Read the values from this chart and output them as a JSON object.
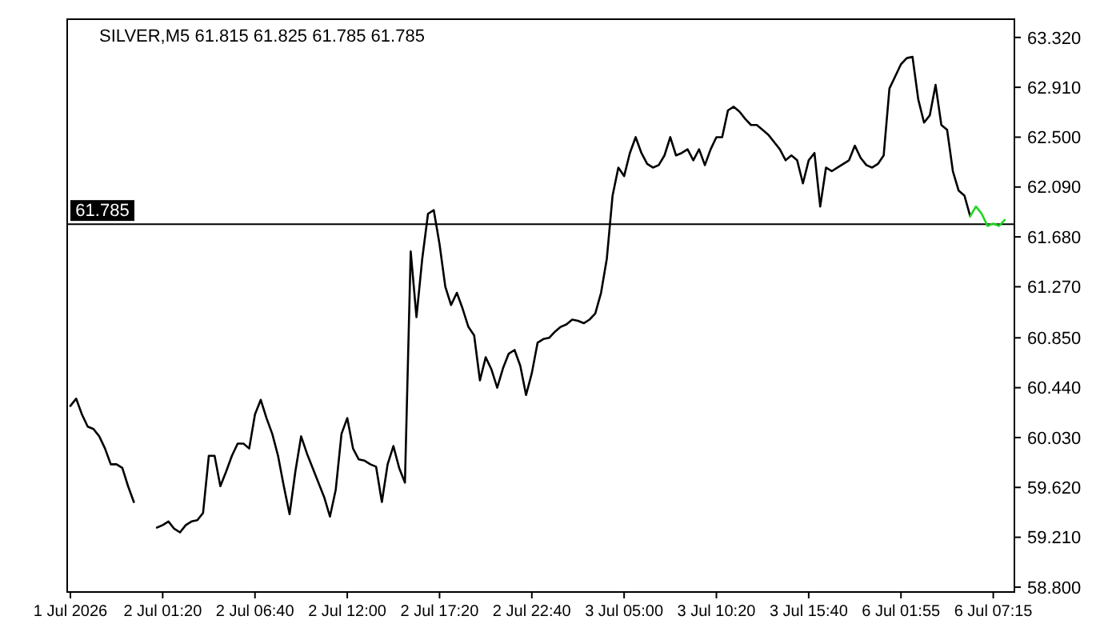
{
  "chart_data": {
    "type": "line",
    "title": "SILVER,M5  61.815 61.825 61.785 61.785",
    "categories": [
      "1 Jul 2026",
      null,
      null,
      null,
      null,
      null,
      null,
      null,
      null,
      null,
      null,
      null,
      null,
      null,
      null,
      null,
      "2 Jul 01:20",
      null,
      null,
      null,
      null,
      null,
      null,
      null,
      null,
      null,
      null,
      null,
      null,
      null,
      null,
      null,
      "2 Jul 06:40",
      null,
      null,
      null,
      null,
      null,
      null,
      null,
      null,
      null,
      null,
      null,
      null,
      null,
      null,
      null,
      "2 Jul 12:00",
      null,
      null,
      null,
      null,
      null,
      null,
      null,
      null,
      null,
      null,
      null,
      null,
      null,
      null,
      null,
      "2 Jul 17:20",
      null,
      null,
      null,
      null,
      null,
      null,
      null,
      null,
      null,
      null,
      null,
      null,
      null,
      null,
      null,
      "2 Jul 22:40",
      null,
      null,
      null,
      null,
      null,
      null,
      null,
      null,
      null,
      null,
      null,
      null,
      null,
      null,
      null,
      "3 Jul 05:00",
      null,
      null,
      null,
      null,
      null,
      null,
      null,
      null,
      null,
      null,
      null,
      null,
      null,
      null,
      null,
      "3 Jul 10:20",
      null,
      null,
      null,
      null,
      null,
      null,
      null,
      null,
      null,
      null,
      null,
      null,
      null,
      null,
      null,
      "3 Jul 15:40",
      null,
      null,
      null,
      null,
      null,
      null,
      null,
      null,
      null,
      null,
      null,
      null,
      null,
      null,
      null,
      "6 Jul 01:55",
      null,
      null,
      null,
      null,
      null,
      null,
      null,
      null,
      null,
      null,
      null,
      null,
      null,
      null,
      null,
      "6 Jul 07:15",
      null,
      null
    ],
    "series": [
      {
        "color": "#000000",
        "values": [
          60.29,
          60.35,
          60.22,
          60.12,
          60.1,
          60.04,
          59.94,
          59.81,
          59.81,
          59.78,
          59.63,
          59.5,
          null,
          null,
          null,
          59.29,
          59.31,
          59.34,
          59.28,
          59.25,
          59.31,
          59.34,
          59.35,
          59.41,
          59.88,
          59.88,
          59.63,
          59.75,
          59.88,
          59.98,
          59.98,
          59.94,
          60.22,
          60.34,
          60.19,
          60.06,
          59.88,
          59.63,
          59.4,
          59.75,
          60.04,
          59.9,
          59.78,
          59.66,
          59.54,
          59.38,
          59.6,
          60.06,
          60.19,
          59.94,
          59.85,
          59.84,
          59.81,
          59.79,
          59.5,
          59.81,
          59.96,
          59.78,
          59.66,
          61.56,
          61.02,
          61.5,
          61.87,
          61.9,
          61.62,
          61.27,
          61.12,
          61.22,
          61.09,
          60.94,
          60.87,
          60.5,
          60.69,
          60.59,
          60.44,
          60.6,
          60.72,
          60.75,
          60.62,
          60.38,
          60.56,
          60.81,
          60.84,
          60.85,
          60.9,
          60.94,
          60.96,
          61.0,
          60.99,
          60.97,
          61.0,
          61.05,
          61.22,
          61.5,
          62.02,
          62.25,
          62.18,
          62.37,
          62.5,
          62.37,
          62.28,
          62.25,
          62.27,
          62.35,
          62.5,
          62.35,
          62.37,
          62.4,
          62.31,
          62.4,
          62.27,
          62.4,
          62.5,
          62.5,
          62.72,
          62.75,
          62.71,
          62.65,
          62.6,
          62.6,
          62.56,
          62.52,
          62.46,
          62.4,
          62.31,
          62.35,
          62.31,
          62.12,
          62.31,
          62.37,
          61.93,
          62.25,
          62.22,
          62.25,
          62.28,
          62.31,
          62.43,
          62.33,
          62.27,
          62.25,
          62.28,
          62.35,
          62.9,
          63.0,
          63.1,
          63.15,
          63.16,
          62.81,
          62.62,
          62.68,
          62.93,
          62.6,
          62.56,
          62.22,
          62.06,
          62.02,
          61.85,
          null,
          null,
          null,
          null,
          null,
          null
        ]
      },
      {
        "color": "#1ed81e",
        "values": [
          null,
          null,
          null,
          null,
          null,
          null,
          null,
          null,
          null,
          null,
          null,
          null,
          null,
          null,
          null,
          null,
          null,
          null,
          null,
          null,
          null,
          null,
          null,
          null,
          null,
          null,
          null,
          null,
          null,
          null,
          null,
          null,
          null,
          null,
          null,
          null,
          null,
          null,
          null,
          null,
          null,
          null,
          null,
          null,
          null,
          null,
          null,
          null,
          null,
          null,
          null,
          null,
          null,
          null,
          null,
          null,
          null,
          null,
          null,
          null,
          null,
          null,
          null,
          null,
          null,
          null,
          null,
          null,
          null,
          null,
          null,
          null,
          null,
          null,
          null,
          null,
          null,
          null,
          null,
          null,
          null,
          null,
          null,
          null,
          null,
          null,
          null,
          null,
          null,
          null,
          null,
          null,
          null,
          null,
          null,
          null,
          null,
          null,
          null,
          null,
          null,
          null,
          null,
          null,
          null,
          null,
          null,
          null,
          null,
          null,
          null,
          null,
          null,
          null,
          null,
          null,
          null,
          null,
          null,
          null,
          null,
          null,
          null,
          null,
          null,
          null,
          null,
          null,
          null,
          null,
          null,
          null,
          null,
          null,
          null,
          null,
          null,
          null,
          null,
          null,
          null,
          null,
          null,
          null,
          null,
          null,
          null,
          null,
          null,
          null,
          null,
          null,
          null,
          null,
          null,
          null,
          61.85,
          61.93,
          61.87,
          61.77,
          61.79,
          61.77,
          61.82
        ]
      }
    ],
    "ylim": [
      58.76,
      63.47
    ],
    "yticks": [
      {
        "value": 58.8,
        "label": "58.800"
      },
      {
        "value": 59.21,
        "label": "59.210"
      },
      {
        "value": 59.62,
        "label": "59.620"
      },
      {
        "value": 60.03,
        "label": "60.030"
      },
      {
        "value": 60.44,
        "label": "60.440"
      },
      {
        "value": 60.85,
        "label": "60.850"
      },
      {
        "value": 61.27,
        "label": "61.270"
      },
      {
        "value": 61.68,
        "label": "61.680"
      },
      {
        "value": 62.09,
        "label": "62.090"
      },
      {
        "value": 62.5,
        "label": "62.500"
      },
      {
        "value": 62.91,
        "label": "62.910"
      },
      {
        "value": 63.32,
        "label": "63.320"
      }
    ],
    "ref_lines": [
      {
        "axis": "y",
        "value": 61.785,
        "label": "61.785",
        "color": "#000000"
      }
    ],
    "grid": false
  }
}
